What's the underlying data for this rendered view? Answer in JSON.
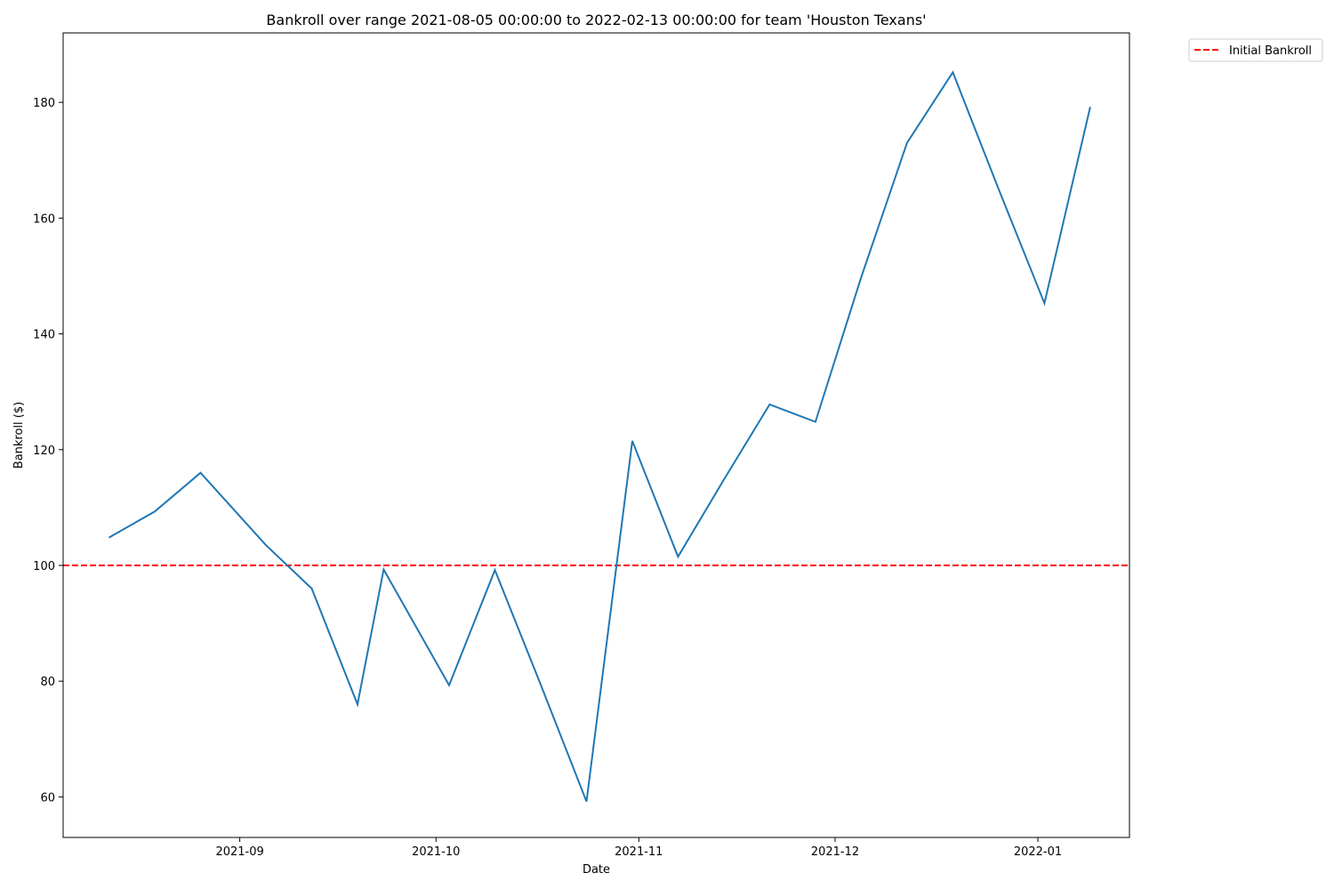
{
  "chart_data": {
    "type": "line",
    "title": "Bankroll over range 2021-08-05 00:00:00 to 2022-02-13 00:00:00 for team 'Houston Texans'",
    "xlabel": "Date",
    "ylabel": "Bankroll ($)",
    "ylim": [
      53,
      192
    ],
    "xlim": [
      "2021-08-05",
      "2022-01-15"
    ],
    "x_ticks": [
      "2021-09",
      "2021-10",
      "2021-11",
      "2021-12",
      "2022-01"
    ],
    "y_ticks": [
      60,
      80,
      100,
      120,
      140,
      160,
      180
    ],
    "grid": false,
    "legend_position": "outside-top-right",
    "series": [
      {
        "color": "#1f77b4",
        "style": "solid",
        "x": [
          "2021-08-12",
          "2021-08-19",
          "2021-08-26",
          "2021-09-05",
          "2021-09-12",
          "2021-09-19",
          "2021-09-23",
          "2021-10-03",
          "2021-10-10",
          "2021-10-17",
          "2021-10-24",
          "2021-10-31",
          "2021-11-07",
          "2021-11-14",
          "2021-11-21",
          "2021-11-28",
          "2021-12-05",
          "2021-12-12",
          "2021-12-19",
          "2021-12-26",
          "2022-01-02",
          "2022-01-09"
        ],
        "y": [
          104.8,
          109.3,
          116.0,
          103.5,
          96.0,
          76.0,
          99.3,
          79.3,
          99.2,
          79.4,
          59.2,
          121.5,
          101.5,
          114.8,
          127.8,
          124.8,
          149.8,
          173.0,
          185.2,
          165.0,
          145.3,
          179.2
        ]
      }
    ],
    "hlines": [
      {
        "name": "Initial Bankroll",
        "y": 100,
        "color": "#ff0000",
        "style": "dashed"
      }
    ]
  }
}
